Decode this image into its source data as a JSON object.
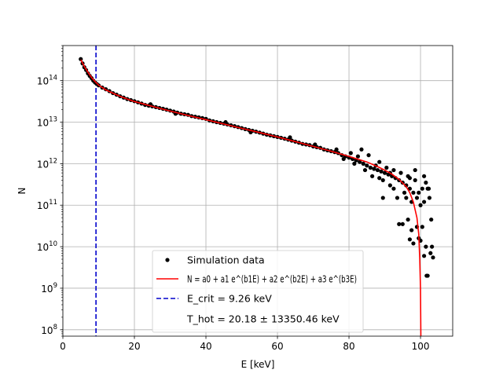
{
  "chart_data": {
    "type": "scatter",
    "xlabel": "E [keV]",
    "ylabel": "N",
    "xlim": [
      0,
      109
    ],
    "ylim": [
      70000000.0,
      700000000000000.0
    ],
    "y_scale": "log",
    "grid": true,
    "legend_position": "lower-center",
    "x_ticks": [
      0,
      20,
      40,
      60,
      80,
      100
    ],
    "x_tick_labels": [
      "0",
      "20",
      "40",
      "60",
      "80",
      "100"
    ],
    "y_ticks": [
      100000000.0,
      1000000000.0,
      10000000000.0,
      100000000000.0,
      1000000000000.0,
      10000000000000.0,
      100000000000000.0
    ],
    "y_tick_labels": [
      {
        "base": "10",
        "exp": "8"
      },
      {
        "base": "10",
        "exp": "9"
      },
      {
        "base": "10",
        "exp": "10"
      },
      {
        "base": "10",
        "exp": "11"
      },
      {
        "base": "10",
        "exp": "12"
      },
      {
        "base": "10",
        "exp": "13"
      },
      {
        "base": "10",
        "exp": "14"
      }
    ],
    "legend": [
      {
        "kind": "scatter",
        "label": "Simulation data",
        "color": "#000000"
      },
      {
        "kind": "line",
        "label": "N = a0 + a1 e^(b1E) + a2 e^(b2E) + a3 e^(b3E)",
        "color": "#ff0000"
      },
      {
        "kind": "dashed",
        "label": "E_crit = 9.26 keV",
        "color": "#0000cc"
      },
      {
        "kind": "none",
        "label": "T_hot = 20.18 ± 13350.46 keV",
        "color": "#ffffff"
      }
    ],
    "ecrit": 9.26,
    "series": [
      {
        "name": "Simulation data",
        "kind": "scatter",
        "color": "#000000",
        "points": [
          [
            5,
            330000000000000.0
          ],
          [
            5.5,
            260000000000000.0
          ],
          [
            6,
            210000000000000.0
          ],
          [
            6.5,
            180000000000000.0
          ],
          [
            7,
            150000000000000.0
          ],
          [
            7.5,
            130000000000000.0
          ],
          [
            8,
            115000000000000.0
          ],
          [
            8.5,
            100000000000000.0
          ],
          [
            9,
            90000000000000.0
          ],
          [
            9.5,
            83000000000000.0
          ],
          [
            10,
            77000000000000.0
          ],
          [
            11,
            68000000000000.0
          ],
          [
            12,
            62000000000000.0
          ],
          [
            13,
            56000000000000.0
          ],
          [
            14,
            50000000000000.0
          ],
          [
            15,
            46000000000000.0
          ],
          [
            16,
            42000000000000.0
          ],
          [
            17,
            39000000000000.0
          ],
          [
            18,
            36000000000000.0
          ],
          [
            19,
            34000000000000.0
          ],
          [
            20,
            32000000000000.0
          ],
          [
            21,
            30000000000000.0
          ],
          [
            22,
            28000000000000.0
          ],
          [
            23,
            26000000000000.0
          ],
          [
            24,
            25000000000000.0
          ],
          [
            25,
            24000000000000.0
          ],
          [
            26,
            23000000000000.0
          ],
          [
            27,
            22000000000000.0
          ],
          [
            28,
            21000000000000.0
          ],
          [
            29,
            20000000000000.0
          ],
          [
            30,
            19000000000000.0
          ],
          [
            31,
            18000000000000.0
          ],
          [
            32,
            17000000000000.0
          ],
          [
            33,
            16000000000000.0
          ],
          [
            34,
            15500000000000.0
          ],
          [
            35,
            15000000000000.0
          ],
          [
            36,
            14000000000000.0
          ],
          [
            37,
            13500000000000.0
          ],
          [
            38,
            13000000000000.0
          ],
          [
            39,
            12500000000000.0
          ],
          [
            40,
            12000000000000.0
          ],
          [
            41,
            11000000000000.0
          ],
          [
            42,
            10500000000000.0
          ],
          [
            43,
            10000000000000.0
          ],
          [
            44,
            9600000000000.0
          ],
          [
            45,
            9200000000000.0
          ],
          [
            46,
            8800000000000.0
          ],
          [
            47,
            8400000000000.0
          ],
          [
            48,
            8000000000000.0
          ],
          [
            49,
            7600000000000.0
          ],
          [
            50,
            7200000000000.0
          ],
          [
            51,
            6800000000000.0
          ],
          [
            52,
            6500000000000.0
          ],
          [
            53,
            6200000000000.0
          ],
          [
            54,
            5900000000000.0
          ],
          [
            55,
            5600000000000.0
          ],
          [
            56,
            5300000000000.0
          ],
          [
            57,
            5000000000000.0
          ],
          [
            58,
            4800000000000.0
          ],
          [
            59,
            4600000000000.0
          ],
          [
            60,
            4400000000000.0
          ],
          [
            61,
            4200000000000.0
          ],
          [
            62,
            4000000000000.0
          ],
          [
            63,
            3800000000000.0
          ],
          [
            64,
            3600000000000.0
          ],
          [
            65,
            3400000000000.0
          ],
          [
            66,
            3200000000000.0
          ],
          [
            67,
            3000000000000.0
          ],
          [
            68,
            2900000000000.0
          ],
          [
            69,
            2800000000000.0
          ],
          [
            70,
            2600000000000.0
          ],
          [
            71,
            2500000000000.0
          ],
          [
            72,
            2400000000000.0
          ],
          [
            73,
            2200000000000.0
          ],
          [
            74,
            2100000000000.0
          ],
          [
            75,
            2000000000000.0
          ],
          [
            76,
            1900000000000.0
          ],
          [
            77,
            1800000000000.0
          ],
          [
            78,
            1600000000000.0
          ],
          [
            79,
            1500000000000.0
          ],
          [
            80,
            1400000000000.0
          ],
          [
            81,
            1300000000000.0
          ],
          [
            82,
            1200000000000.0
          ],
          [
            83,
            1100000000000.0
          ],
          [
            84,
            1000000000000.0
          ],
          [
            85,
            900000000000.0
          ],
          [
            86,
            800000000000.0
          ],
          [
            87,
            750000000000.0
          ],
          [
            88,
            700000000000.0
          ],
          [
            89,
            650000000000.0
          ],
          [
            90,
            600000000000.0
          ],
          [
            91,
            550000000000.0
          ],
          [
            92,
            500000000000.0
          ],
          [
            93,
            450000000000.0
          ],
          [
            94,
            400000000000.0
          ],
          [
            95,
            350000000000.0
          ],
          [
            96,
            300000000000.0
          ],
          [
            97,
            250000000000.0
          ],
          [
            98,
            200000000000.0
          ],
          [
            99,
            150000000000.0
          ],
          [
            100,
            100000000000.0
          ],
          [
            24.5,
            27000000000000.0
          ],
          [
            31.5,
            16000000000000.0
          ],
          [
            45.5,
            10000000000000.0
          ],
          [
            52.5,
            5700000000000.0
          ],
          [
            63.5,
            4300000000000.0
          ],
          [
            70.5,
            2900000000000.0
          ],
          [
            76.5,
            2200000000000.0
          ],
          [
            78.5,
            1300000000000.0
          ],
          [
            80.5,
            1800000000000.0
          ],
          [
            81.5,
            1000000000000.0
          ],
          [
            82.5,
            1500000000000.0
          ],
          [
            83.5,
            2200000000000.0
          ],
          [
            84.5,
            700000000000.0
          ],
          [
            85.5,
            1600000000000.0
          ],
          [
            86.5,
            500000000000.0
          ],
          [
            87.5,
            900000000000.0
          ],
          [
            88.5,
            1100000000000.0
          ],
          [
            89.5,
            400000000000.0
          ],
          [
            90.5,
            800000000000.0
          ],
          [
            91.5,
            300000000000.0
          ],
          [
            92.5,
            700000000000.0
          ],
          [
            93.5,
            150000000000.0
          ],
          [
            94.5,
            600000000000.0
          ],
          [
            95.5,
            200000000000.0
          ],
          [
            96.5,
            500000000000.0
          ],
          [
            97.5,
            120000000000.0
          ],
          [
            98.5,
            400000000000.0
          ],
          [
            99.5,
            200000000000.0
          ],
          [
            88.5,
            450000000000.0
          ],
          [
            89.5,
            150000000000.0
          ],
          [
            91.5,
            600000000000.0
          ],
          [
            92.5,
            250000000000.0
          ],
          [
            94,
            35000000000.0
          ],
          [
            95,
            35000000000.0
          ],
          [
            96.5,
            45000000000.0
          ],
          [
            97,
            15000000000.0
          ],
          [
            97.5,
            25000000000.0
          ],
          [
            98,
            12000000000.0
          ],
          [
            99,
            30000000000.0
          ],
          [
            99.5,
            16000000000.0
          ],
          [
            100,
            14000000000.0
          ],
          [
            100.5,
            30000000000.0
          ],
          [
            101,
            6000000000.0
          ],
          [
            101.5,
            10000000000.0
          ],
          [
            101.7,
            2000000000.0
          ],
          [
            102,
            2000000000.0
          ],
          [
            102.3,
            250000000000.0
          ],
          [
            102.5,
            150000000000.0
          ],
          [
            102.8,
            7000000000.0
          ],
          [
            103,
            45000000000.0
          ],
          [
            103.2,
            10000000000.0
          ],
          [
            103.5,
            5500000000.0
          ],
          [
            100.5,
            250000000000.0
          ],
          [
            101,
            500000000000.0
          ],
          [
            101.5,
            350000000000.0
          ],
          [
            102,
            250000000000.0
          ],
          [
            96,
            150000000000.0
          ],
          [
            97,
            450000000000.0
          ],
          [
            98.5,
            700000000000.0
          ],
          [
            101,
            120000000000.0
          ]
        ]
      },
      {
        "name": "Fit",
        "kind": "line",
        "color": "#ff0000",
        "points": [
          [
            5,
            320000000000000.0
          ],
          [
            6,
            220000000000000.0
          ],
          [
            7,
            160000000000000.0
          ],
          [
            8,
            120000000000000.0
          ],
          [
            9,
            95000000000000.0
          ],
          [
            10,
            78000000000000.0
          ],
          [
            12,
            60000000000000.0
          ],
          [
            14,
            50000000000000.0
          ],
          [
            16,
            42000000000000.0
          ],
          [
            18,
            36000000000000.0
          ],
          [
            20,
            31500000000000.0
          ],
          [
            25,
            24000000000000.0
          ],
          [
            30,
            18500000000000.0
          ],
          [
            35,
            14500000000000.0
          ],
          [
            40,
            11500000000000.0
          ],
          [
            45,
            9000000000000.0
          ],
          [
            50,
            7100000000000.0
          ],
          [
            55,
            5600000000000.0
          ],
          [
            60,
            4400000000000.0
          ],
          [
            65,
            3400000000000.0
          ],
          [
            70,
            2600000000000.0
          ],
          [
            75,
            2000000000000.0
          ],
          [
            80,
            1500000000000.0
          ],
          [
            85,
            1100000000000.0
          ],
          [
            88,
            850000000000.0
          ],
          [
            90,
            700000000000.0
          ],
          [
            92,
            560000000000.0
          ],
          [
            94,
            420000000000.0
          ],
          [
            96,
            280000000000.0
          ],
          [
            97,
            200000000000.0
          ],
          [
            98,
            120000000000.0
          ],
          [
            99,
            50000000000.0
          ],
          [
            99.5,
            20000000000.0
          ],
          [
            99.8,
            5000000000.0
          ],
          [
            100,
            1000000000.0
          ],
          [
            100.1,
            70000000.0
          ]
        ]
      }
    ]
  }
}
